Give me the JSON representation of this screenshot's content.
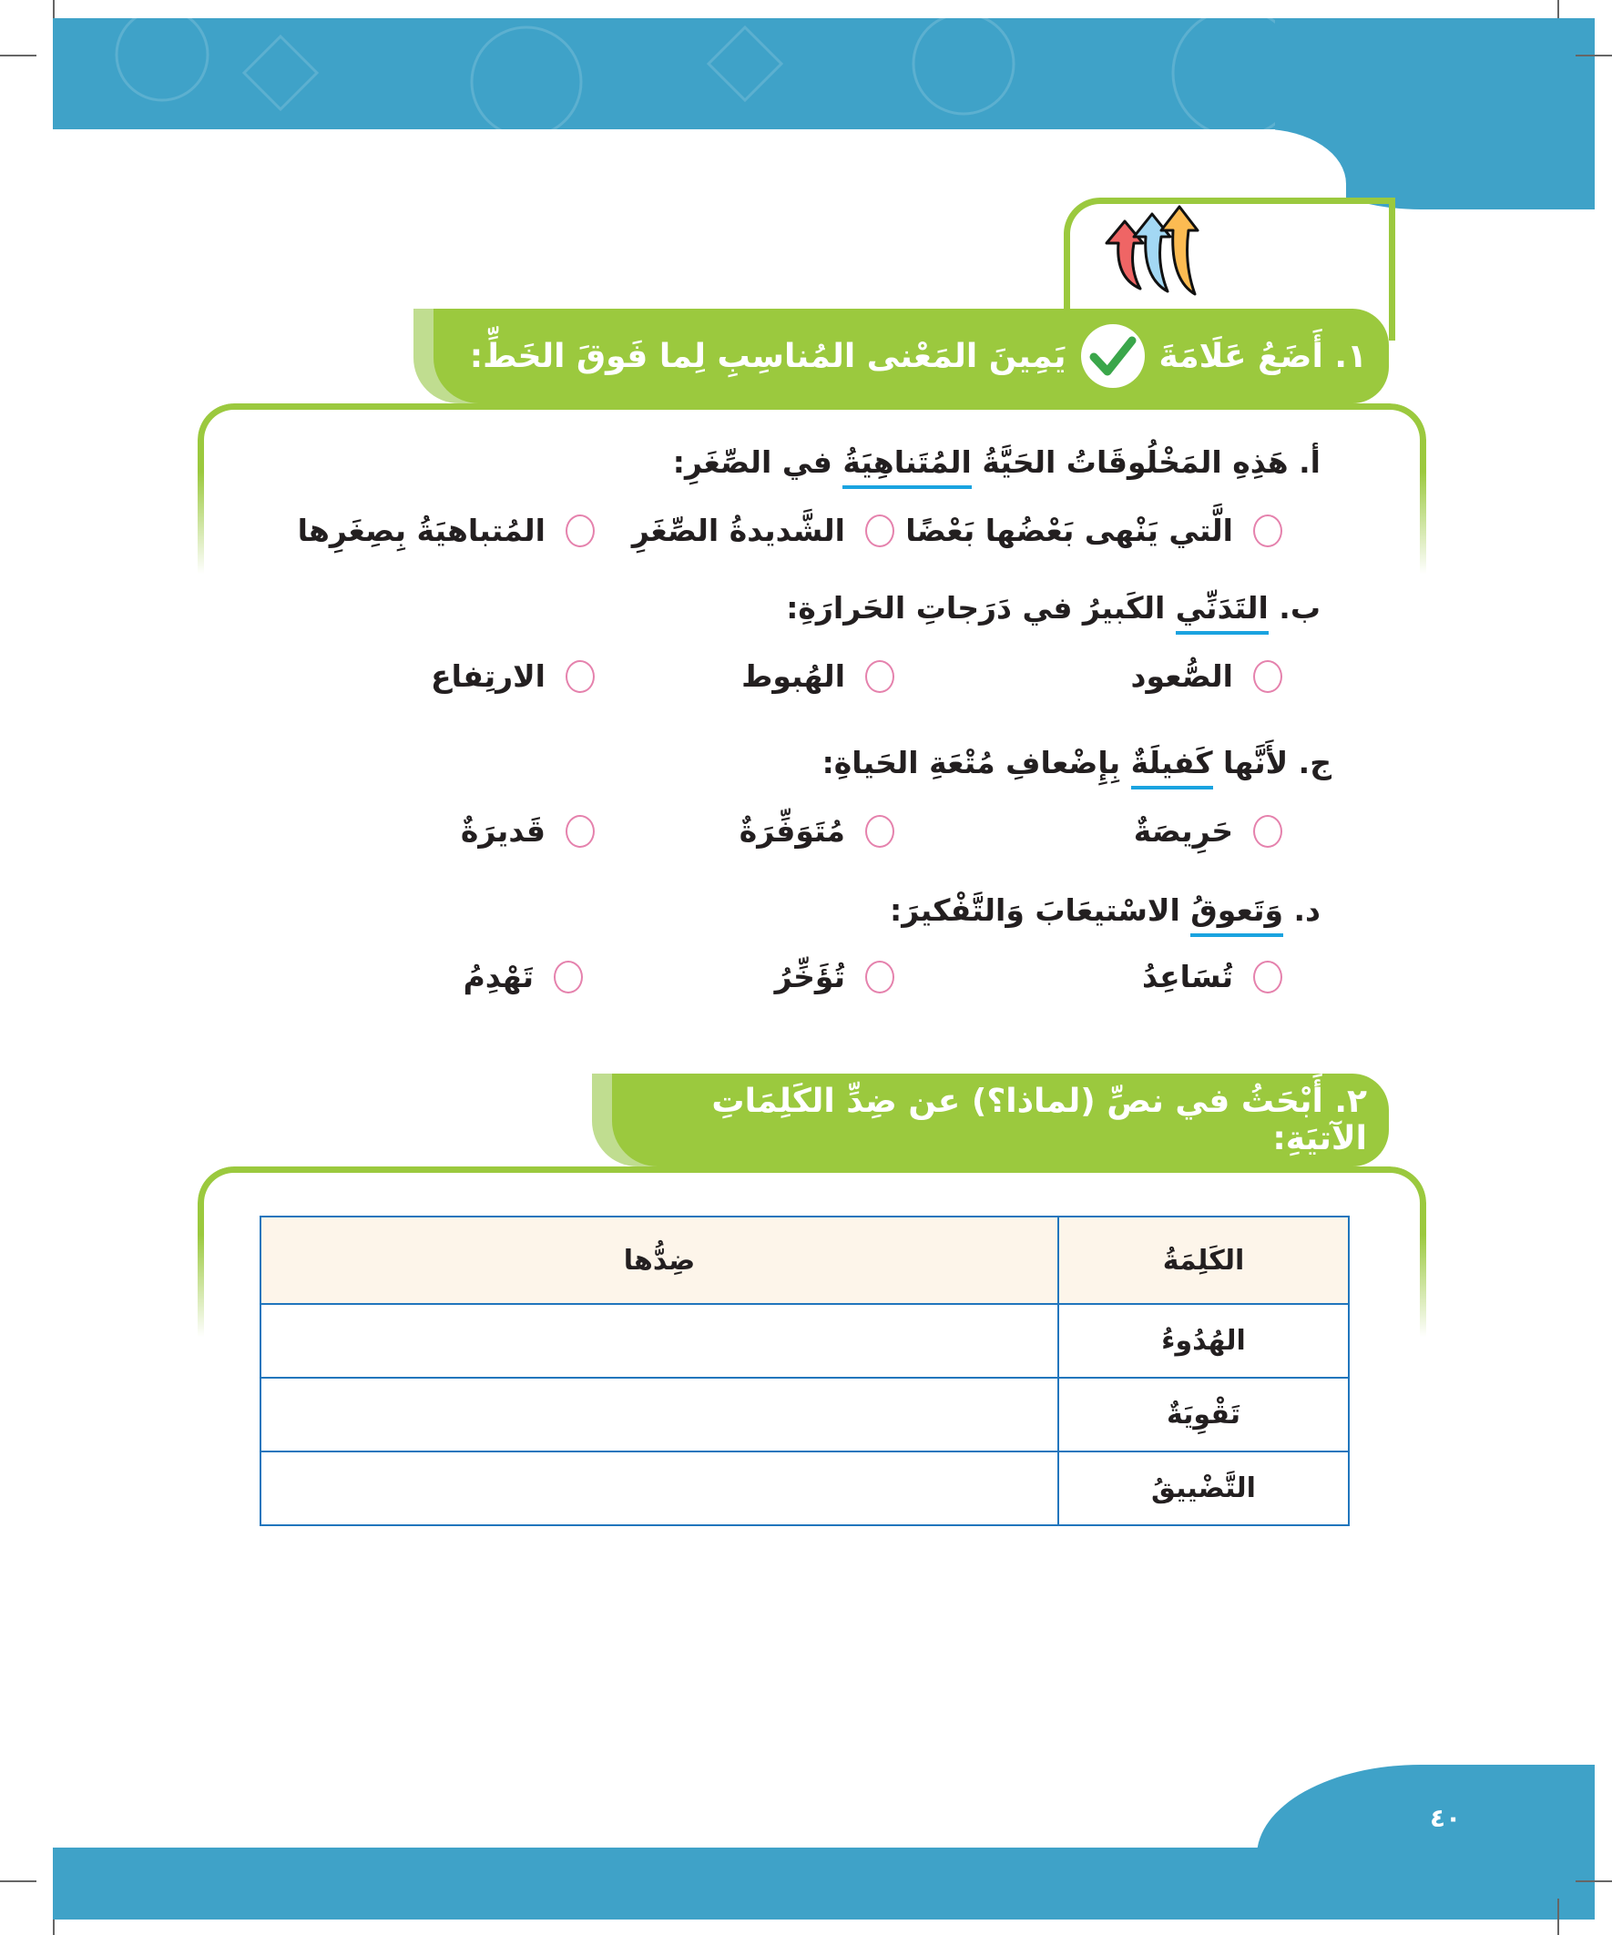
{
  "colors": {
    "banner": "#3fa2c8",
    "section_green": "#9bc93e",
    "underline": "#1aa3e0",
    "radio": "#e582ad",
    "table_border": "#2176bd",
    "table_header_bg": "#fdf5ea"
  },
  "icon": "three-rising-arrows-icon",
  "exercise1": {
    "title_part1": "١. أَضَعُ عَلَامَةَ",
    "title_icon": "checkmark-icon",
    "title_part2": "يَمِينَ المَعْنى المُناسِبِ لِما فَوقَ الخَطِّ:",
    "questions": [
      {
        "prefix": "أ. هَذِهِ المَخْلُوقَاتُ الحَيَّةُ ",
        "underlined": "المُتَناهِيَةُ",
        "suffix": " في الصِّغَرِ:",
        "options": [
          "الَّتي يَنْهى بَعْضُها بَعْضًا",
          "الشَّديدةُ الصِّغَرِ",
          "المُتباهيَةُ بِصِغَرِها"
        ]
      },
      {
        "prefix": "ب. ",
        "underlined": "التَدَنِّي",
        "suffix": " الكَبيرُ في دَرَجاتِ الحَرارَةِ:",
        "options": [
          "الصُّعود",
          "الهُبوط",
          "الارتِفاع"
        ]
      },
      {
        "prefix": "ج. لأَنَّها ",
        "underlined": "كَفيلَةٌ",
        "suffix": " بِإِضْعافِ مُتْعَةِ الحَياةِ:",
        "options": [
          "حَرِيصَةٌ",
          "مُتَوَفِّرَةٌ",
          "قَديرَةٌ"
        ]
      },
      {
        "prefix": "د. ",
        "underlined": "وَتَعوقُ",
        "suffix": " الاسْتيعَابَ وَالتَّفْكيرَ:",
        "options": [
          "تُسَاعِدُ",
          "تُؤَخِّرُ",
          "تَهْدِمُ"
        ]
      }
    ]
  },
  "exercise2": {
    "title": "٢. أَبْحَثُ في نصِّ (لماذا؟) عن ضِدِّ الكَلِمَاتِ الآتيَةِ:",
    "table": {
      "headers": [
        "الكَلِمَةُ",
        "ضِدُّها"
      ],
      "rows": [
        [
          "الهُدُوءُ",
          ""
        ],
        [
          "تَقْوِيَةٌ",
          ""
        ],
        [
          "التَّضْييقُ",
          ""
        ]
      ]
    }
  },
  "page_number": "٤٠"
}
